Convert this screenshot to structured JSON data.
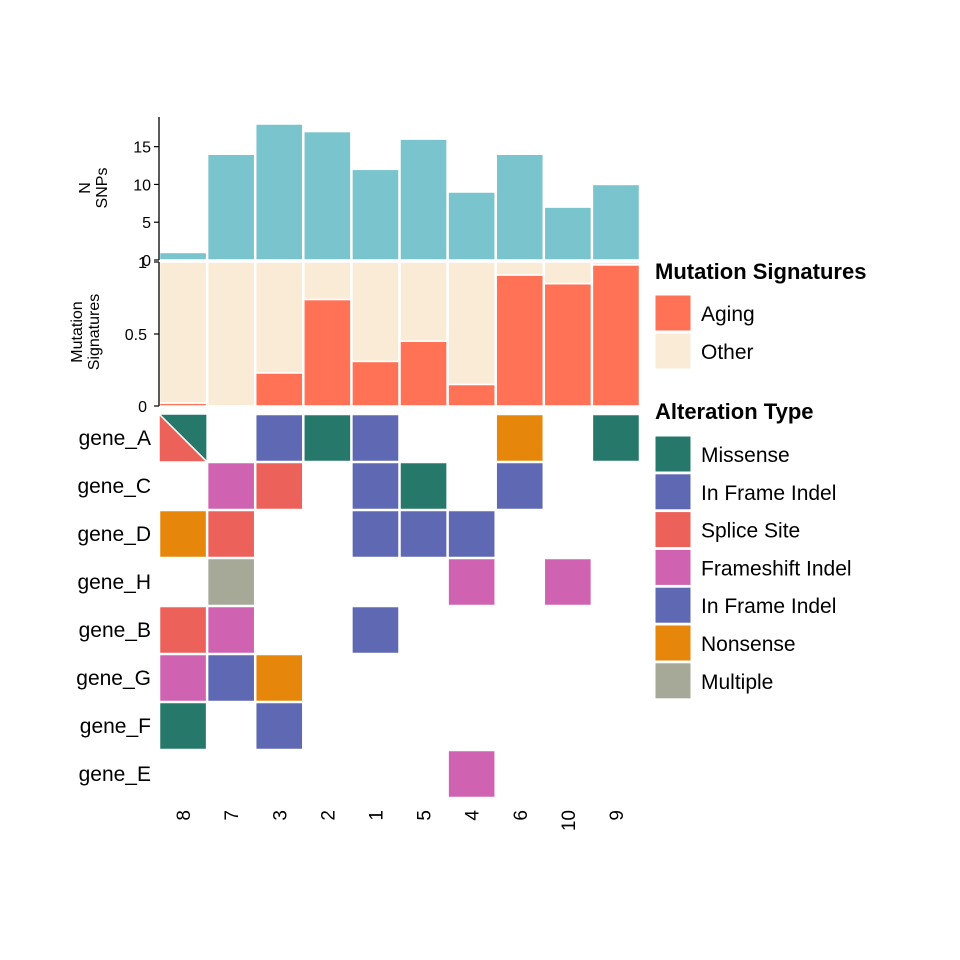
{
  "chart_data": [
    {
      "type": "bar",
      "panel": "snp-counts",
      "ylabel_lines": [
        "N",
        "SNPs"
      ],
      "categories": [
        "8",
        "7",
        "3",
        "2",
        "1",
        "5",
        "4",
        "6",
        "10",
        "9"
      ],
      "values": [
        1,
        14,
        18,
        17,
        12,
        16,
        9,
        14,
        7,
        10
      ],
      "ylim": [
        0,
        18
      ],
      "yticks": [
        "0",
        "5",
        "10",
        "15"
      ],
      "ytick_values": [
        0,
        5,
        10,
        15
      ],
      "bar_color": "#7ac4cd"
    },
    {
      "type": "bar",
      "panel": "mutation-signatures",
      "stacked": true,
      "ylabel_lines": [
        "Mutation",
        "Signatures"
      ],
      "categories": [
        "8",
        "7",
        "3",
        "2",
        "1",
        "5",
        "4",
        "6",
        "10",
        "9"
      ],
      "series": [
        {
          "name": "Aging",
          "color": "#ff7256",
          "values": [
            0.02,
            0.0,
            0.23,
            0.74,
            0.31,
            0.45,
            0.15,
            0.91,
            0.85,
            0.98
          ]
        },
        {
          "name": "Other",
          "color": "#faebd7",
          "values": [
            0.98,
            1.0,
            0.77,
            0.26,
            0.69,
            0.55,
            0.85,
            0.09,
            0.15,
            0.02
          ]
        }
      ],
      "ylim": [
        0,
        1
      ],
      "yticks": [
        "0",
        "0.5",
        "1"
      ],
      "ytick_values": [
        0,
        0.5,
        1
      ]
    },
    {
      "type": "heatmap",
      "panel": "alteration-grid",
      "x": [
        "8",
        "7",
        "3",
        "2",
        "1",
        "5",
        "4",
        "6",
        "10",
        "9"
      ],
      "genes": [
        "gene_A",
        "gene_C",
        "gene_D",
        "gene_H",
        "gene_B",
        "gene_G",
        "gene_F",
        "gene_E"
      ],
      "cells": [
        {
          "gene": "gene_A",
          "sample": "8",
          "types": [
            "Missense",
            "Splice Site"
          ]
        },
        {
          "gene": "gene_A",
          "sample": "3",
          "types": [
            "In Frame Indel"
          ]
        },
        {
          "gene": "gene_A",
          "sample": "2",
          "types": [
            "Missense"
          ]
        },
        {
          "gene": "gene_A",
          "sample": "1",
          "types": [
            "In Frame Indel"
          ]
        },
        {
          "gene": "gene_A",
          "sample": "6",
          "types": [
            "Nonsense"
          ]
        },
        {
          "gene": "gene_A",
          "sample": "9",
          "types": [
            "Missense"
          ]
        },
        {
          "gene": "gene_C",
          "sample": "7",
          "types": [
            "Frameshift Indel"
          ]
        },
        {
          "gene": "gene_C",
          "sample": "3",
          "types": [
            "Splice Site"
          ]
        },
        {
          "gene": "gene_C",
          "sample": "1",
          "types": [
            "In Frame Indel"
          ]
        },
        {
          "gene": "gene_C",
          "sample": "5",
          "types": [
            "Missense"
          ]
        },
        {
          "gene": "gene_C",
          "sample": "6",
          "types": [
            "In Frame Indel"
          ]
        },
        {
          "gene": "gene_D",
          "sample": "8",
          "types": [
            "Nonsense"
          ]
        },
        {
          "gene": "gene_D",
          "sample": "7",
          "types": [
            "Splice Site"
          ]
        },
        {
          "gene": "gene_D",
          "sample": "1",
          "types": [
            "In Frame Indel"
          ]
        },
        {
          "gene": "gene_D",
          "sample": "5",
          "types": [
            "In Frame Indel"
          ]
        },
        {
          "gene": "gene_D",
          "sample": "4",
          "types": [
            "In Frame Indel"
          ]
        },
        {
          "gene": "gene_H",
          "sample": "7",
          "types": [
            "Multiple"
          ]
        },
        {
          "gene": "gene_H",
          "sample": "4",
          "types": [
            "Frameshift Indel"
          ]
        },
        {
          "gene": "gene_H",
          "sample": "10",
          "types": [
            "Frameshift Indel"
          ]
        },
        {
          "gene": "gene_B",
          "sample": "8",
          "types": [
            "Splice Site"
          ]
        },
        {
          "gene": "gene_B",
          "sample": "7",
          "types": [
            "Frameshift Indel"
          ]
        },
        {
          "gene": "gene_B",
          "sample": "1",
          "types": [
            "In Frame Indel"
          ]
        },
        {
          "gene": "gene_G",
          "sample": "8",
          "types": [
            "Frameshift Indel"
          ]
        },
        {
          "gene": "gene_G",
          "sample": "7",
          "types": [
            "In Frame Indel"
          ]
        },
        {
          "gene": "gene_G",
          "sample": "3",
          "types": [
            "Nonsense"
          ]
        },
        {
          "gene": "gene_F",
          "sample": "8",
          "types": [
            "Missense"
          ]
        },
        {
          "gene": "gene_F",
          "sample": "3",
          "types": [
            "In Frame Indel"
          ]
        },
        {
          "gene": "gene_E",
          "sample": "4",
          "types": [
            "Frameshift Indel"
          ]
        }
      ]
    }
  ],
  "legends": {
    "signatures": {
      "title": "Mutation Signatures",
      "items": [
        {
          "label": "Aging",
          "color": "#ff7256"
        },
        {
          "label": "Other",
          "color": "#faebd7"
        }
      ]
    },
    "alterations": {
      "title": "Alteration Type",
      "items": [
        {
          "label": "Missense",
          "color": "#26786a"
        },
        {
          "label": "In Frame Indel",
          "color": "#5f68b3"
        },
        {
          "label": "Splice Site",
          "color": "#ec615a"
        },
        {
          "label": "Frameshift Indel",
          "color": "#cf63b2"
        },
        {
          "label": "In Frame Indel",
          "color": "#5f68b3"
        },
        {
          "label": "Nonsense",
          "color": "#e6860b"
        },
        {
          "label": "Multiple",
          "color": "#a6a998"
        }
      ]
    }
  }
}
